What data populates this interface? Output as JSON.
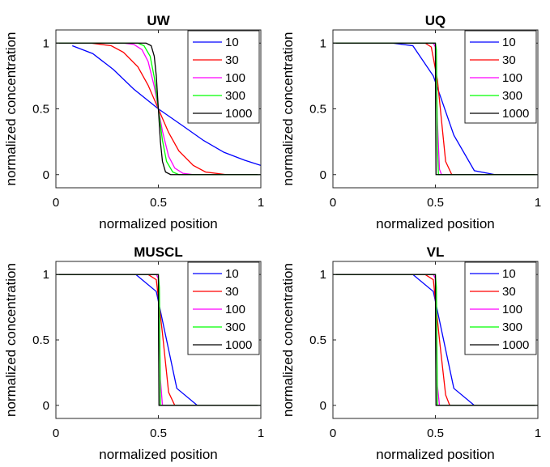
{
  "chart_data": [
    {
      "type": "line",
      "title": "UW",
      "xlabel": "normalized position",
      "ylabel": "normalized concentration",
      "xlim": [
        0,
        1
      ],
      "ylim": [
        -0.1,
        1.1
      ],
      "xticks": [
        "0",
        "0.5",
        "1"
      ],
      "yticks": [
        "0",
        "0.5",
        "1"
      ],
      "legend_position": "top-right",
      "series": [
        {
          "name": "10",
          "color": "#0000ff",
          "x": [
            0.08,
            0.18,
            0.28,
            0.38,
            0.5,
            0.62,
            0.72,
            0.82,
            0.92,
            1.0
          ],
          "y": [
            0.98,
            0.92,
            0.8,
            0.65,
            0.5,
            0.37,
            0.26,
            0.17,
            0.11,
            0.07
          ]
        },
        {
          "name": "30",
          "color": "#ff0000",
          "x": [
            0.0,
            0.17,
            0.27,
            0.33,
            0.4,
            0.45,
            0.5,
            0.55,
            0.6,
            0.67,
            0.73,
            0.83,
            1.0
          ],
          "y": [
            1.0,
            1.0,
            0.98,
            0.93,
            0.82,
            0.68,
            0.5,
            0.32,
            0.18,
            0.07,
            0.02,
            0.0,
            0.0
          ]
        },
        {
          "name": "100",
          "color": "#ff00ff",
          "x": [
            0.0,
            0.33,
            0.38,
            0.42,
            0.45,
            0.48,
            0.5,
            0.52,
            0.55,
            0.58,
            0.62,
            0.67,
            1.0
          ],
          "y": [
            1.0,
            1.0,
            0.99,
            0.95,
            0.86,
            0.67,
            0.5,
            0.33,
            0.14,
            0.05,
            0.01,
            0.0,
            0.0
          ]
        },
        {
          "name": "300",
          "color": "#00ff00",
          "x": [
            0.0,
            0.4,
            0.43,
            0.46,
            0.48,
            0.5,
            0.52,
            0.54,
            0.57,
            0.6,
            1.0
          ],
          "y": [
            1.0,
            1.0,
            0.98,
            0.9,
            0.74,
            0.5,
            0.26,
            0.1,
            0.02,
            0.0,
            0.0
          ]
        },
        {
          "name": "1000",
          "color": "#000000",
          "x": [
            0.0,
            0.44,
            0.465,
            0.48,
            0.49,
            0.5,
            0.51,
            0.52,
            0.535,
            0.56,
            1.0
          ],
          "y": [
            1.0,
            1.0,
            0.98,
            0.9,
            0.75,
            0.5,
            0.25,
            0.1,
            0.02,
            0.0,
            0.0
          ]
        }
      ]
    },
    {
      "type": "line",
      "title": "UQ",
      "xlabel": "normalized position",
      "ylabel": "normalized concentration",
      "xlim": [
        0,
        1
      ],
      "ylim": [
        -0.1,
        1.1
      ],
      "xticks": [
        "0",
        "0.5",
        "1"
      ],
      "yticks": [
        "0",
        "0.5",
        "1"
      ],
      "legend_position": "top-right",
      "series": [
        {
          "name": "10",
          "color": "#0000ff",
          "x": [
            0.0,
            0.29,
            0.39,
            0.49,
            0.59,
            0.69,
            0.79,
            1.0
          ],
          "y": [
            1.0,
            1.0,
            0.98,
            0.75,
            0.3,
            0.03,
            0.0,
            0.0
          ]
        },
        {
          "name": "30",
          "color": "#ff0000",
          "x": [
            0.0,
            0.45,
            0.48,
            0.51,
            0.55,
            0.58,
            1.0
          ],
          "y": [
            1.0,
            1.0,
            0.97,
            0.72,
            0.1,
            0.0,
            0.0
          ]
        },
        {
          "name": "100",
          "color": "#ff00ff",
          "x": [
            0.0,
            0.49,
            0.5,
            0.51,
            0.52,
            0.53,
            1.0
          ],
          "y": [
            1.0,
            1.0,
            0.97,
            0.4,
            0.04,
            0.0,
            0.0
          ]
        },
        {
          "name": "300",
          "color": "#00ff00",
          "x": [
            0.0,
            0.5,
            0.505,
            0.51,
            0.515,
            1.0
          ],
          "y": [
            1.0,
            1.0,
            0.95,
            0.2,
            0.0,
            0.0
          ]
        },
        {
          "name": "1000",
          "color": "#000000",
          "x": [
            0.0,
            0.5,
            0.501,
            0.503,
            1.0
          ],
          "y": [
            1.0,
            1.0,
            0.5,
            0.0,
            0.0
          ]
        }
      ]
    },
    {
      "type": "line",
      "title": "MUSCL",
      "xlabel": "normalized position",
      "ylabel": "normalized concentration",
      "xlim": [
        0,
        1
      ],
      "ylim": [
        -0.1,
        1.1
      ],
      "xticks": [
        "0",
        "0.5",
        "1"
      ],
      "yticks": [
        "0",
        "0.5",
        "1"
      ],
      "legend_position": "top-right",
      "series": [
        {
          "name": "10",
          "color": "#0000ff",
          "x": [
            0.0,
            0.39,
            0.49,
            0.59,
            0.69,
            0.79,
            1.0
          ],
          "y": [
            1.0,
            1.0,
            0.87,
            0.13,
            0.0,
            0.0,
            0.0
          ]
        },
        {
          "name": "30",
          "color": "#ff0000",
          "x": [
            0.0,
            0.45,
            0.49,
            0.52,
            0.55,
            0.58,
            1.0
          ],
          "y": [
            1.0,
            1.0,
            0.96,
            0.55,
            0.1,
            0.0,
            0.0
          ]
        },
        {
          "name": "100",
          "color": "#ff00ff",
          "x": [
            0.0,
            0.49,
            0.5,
            0.51,
            0.52,
            1.0
          ],
          "y": [
            1.0,
            1.0,
            0.97,
            0.2,
            0.0,
            0.0
          ]
        },
        {
          "name": "300",
          "color": "#00ff00",
          "x": [
            0.0,
            0.5,
            0.505,
            0.51,
            1.0
          ],
          "y": [
            1.0,
            1.0,
            0.9,
            0.0,
            0.0
          ]
        },
        {
          "name": "1000",
          "color": "#000000",
          "x": [
            0.0,
            0.5,
            0.501,
            0.503,
            1.0
          ],
          "y": [
            1.0,
            1.0,
            0.5,
            0.0,
            0.0
          ]
        }
      ]
    },
    {
      "type": "line",
      "title": "VL",
      "xlabel": "normalized position",
      "ylabel": "normalized concentration",
      "xlim": [
        0,
        1
      ],
      "ylim": [
        -0.1,
        1.1
      ],
      "xticks": [
        "0",
        "0.5",
        "1"
      ],
      "yticks": [
        "0",
        "0.5",
        "1"
      ],
      "legend_position": "top-right",
      "series": [
        {
          "name": "10",
          "color": "#0000ff",
          "x": [
            0.0,
            0.39,
            0.49,
            0.59,
            0.69,
            0.79,
            1.0
          ],
          "y": [
            1.0,
            1.0,
            0.87,
            0.13,
            0.0,
            0.0,
            0.0
          ]
        },
        {
          "name": "30",
          "color": "#ff0000",
          "x": [
            0.0,
            0.45,
            0.49,
            0.52,
            0.55,
            0.57,
            1.0
          ],
          "y": [
            1.0,
            1.0,
            0.96,
            0.5,
            0.08,
            0.0,
            0.0
          ]
        },
        {
          "name": "100",
          "color": "#ff00ff",
          "x": [
            0.0,
            0.49,
            0.5,
            0.51,
            0.52,
            1.0
          ],
          "y": [
            1.0,
            1.0,
            0.97,
            0.15,
            0.0,
            0.0
          ]
        },
        {
          "name": "300",
          "color": "#00ff00",
          "x": [
            0.0,
            0.5,
            0.505,
            0.51,
            1.0
          ],
          "y": [
            1.0,
            1.0,
            0.9,
            0.0,
            0.0
          ]
        },
        {
          "name": "1000",
          "color": "#000000",
          "x": [
            0.0,
            0.5,
            0.501,
            0.503,
            1.0
          ],
          "y": [
            1.0,
            1.0,
            0.5,
            0.0,
            0.0
          ]
        }
      ]
    }
  ]
}
